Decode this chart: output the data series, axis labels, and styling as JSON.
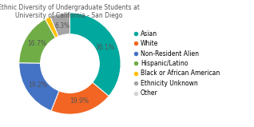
{
  "title": "Ethnic Diversity of Undergraduate Students at\nUniversity of California - San Diego",
  "labels": [
    "Asian",
    "White",
    "Non-Resident Alien",
    "Hispanic/Latino",
    "Black or African American",
    "Ethnicity Unknown",
    "Other"
  ],
  "values": [
    36.1,
    19.9,
    19.2,
    16.7,
    1.8,
    6.3,
    0.0
  ],
  "colors": [
    "#00a89d",
    "#f26522",
    "#4472c4",
    "#70ad47",
    "#ffc000",
    "#a5a5a5",
    "#d3d3d3"
  ],
  "pct_labels": [
    "36.1%",
    "19.9%",
    "19.2%",
    "16.7%",
    "",
    "6.3%",
    ""
  ],
  "title_fontsize": 5.5,
  "legend_fontsize": 5.5,
  "label_fontsize": 5.5,
  "background_color": "#ffffff",
  "title_color": "#555555",
  "label_color": "#555555"
}
